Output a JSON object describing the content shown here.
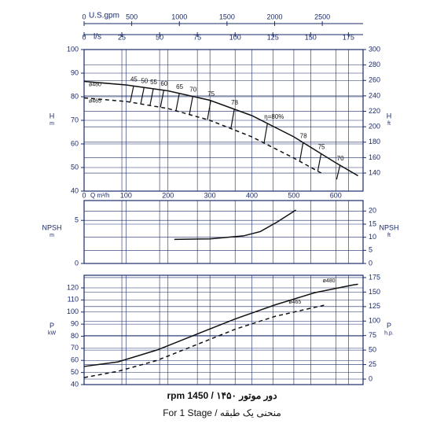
{
  "chart_data": [
    {
      "type": "line",
      "ylabel": "H",
      "yunit": "m",
      "y2label": "H",
      "y2unit": "ft",
      "xlabel": "Q m³/h",
      "xlim": [
        0,
        665
      ],
      "xticks": [
        0,
        100,
        200,
        300,
        400,
        500,
        600
      ],
      "ylim": [
        40,
        100
      ],
      "yticks": [
        40,
        50,
        60,
        70,
        80,
        90,
        100
      ],
      "y2lim": [
        116.6,
        300
      ],
      "y2ticks": [
        140,
        160,
        180,
        200,
        220,
        240,
        260,
        280,
        300
      ],
      "gpm_axis": {
        "label": "U.S.gpm",
        "lim": [
          0,
          2928
        ],
        "ticks": [
          0,
          500,
          1000,
          1500,
          2000,
          2500
        ]
      },
      "ls_axis": {
        "label": "l/s",
        "lim": [
          0,
          184.7
        ],
        "ticks": [
          0,
          25,
          50,
          75,
          100,
          125,
          150,
          175
        ]
      },
      "grid": true,
      "series": [
        {
          "name": "ø480",
          "color": "#111111",
          "dashed": false,
          "x": [
            0,
            100,
            200,
            300,
            400,
            500,
            600,
            653
          ],
          "values": [
            86.5,
            85,
            82.5,
            78.5,
            72,
            63,
            52,
            46.5
          ]
        },
        {
          "name": "ø465",
          "color": "#111111",
          "dashed": true,
          "x": [
            0,
            100,
            200,
            300,
            400,
            500,
            572
          ],
          "values": [
            79.5,
            78,
            75,
            70,
            63,
            54,
            47
          ]
        }
      ],
      "efficiency": {
        "x": [
          118,
          143,
          165,
          190,
          227,
          259,
          302,
          358,
          437,
          522,
          565,
          610
        ],
        "values": [
          45,
          50,
          55,
          60,
          65,
          70,
          75,
          78,
          80,
          78,
          75,
          70
        ],
        "value_labels": [
          "45",
          "50",
          "55",
          "60",
          "65",
          "70",
          "75",
          "78",
          "η=80%",
          "78",
          "75",
          "70"
        ]
      }
    },
    {
      "type": "line",
      "ylabel": "NPSH",
      "yunit": "m",
      "y2label": "NPSH",
      "y2unit": "ft",
      "ylim": [
        0,
        7.3
      ],
      "yticks": [
        0,
        5
      ],
      "y2lim": [
        0,
        24
      ],
      "y2ticks": [
        0,
        5,
        10,
        15,
        20
      ],
      "grid": true,
      "series": [
        {
          "color": "#111111",
          "dashed": false,
          "x": [
            215,
            300,
            380,
            420,
            460,
            505
          ],
          "values": [
            2.8,
            2.85,
            3.2,
            3.7,
            4.8,
            6.2
          ]
        }
      ]
    },
    {
      "type": "line",
      "ylabel": "P",
      "yunit": "kW",
      "y2label": "P",
      "y2unit": "h.p.",
      "ylim": [
        40,
        130.4
      ],
      "yticks": [
        40,
        50,
        60,
        70,
        80,
        90,
        100,
        110,
        120
      ],
      "y2lim": [
        -9.5,
        179
      ],
      "y2ticks": [
        0,
        25,
        50,
        75,
        100,
        125,
        150,
        175
      ],
      "grid": true,
      "series": [
        {
          "name": "ø480",
          "color": "#111111",
          "dashed": false,
          "x": [
            0,
            81,
            174,
            268,
            362,
            456,
            550,
            643,
            653
          ],
          "values": [
            55,
            58.8,
            68.6,
            81.6,
            94.5,
            106,
            116,
            122.5,
            123
          ]
        },
        {
          "name": "ø465",
          "color": "#111111",
          "dashed": true,
          "x": [
            0,
            81,
            174,
            268,
            362,
            456,
            572
          ],
          "values": [
            45.8,
            51,
            60,
            73,
            86,
            96.5,
            105.6
          ]
        }
      ]
    }
  ],
  "captions": [
    "دور موتور ۱۴۵۰ / 1450 rpm",
    "منحنی یک طبقه / For 1 Stage"
  ]
}
